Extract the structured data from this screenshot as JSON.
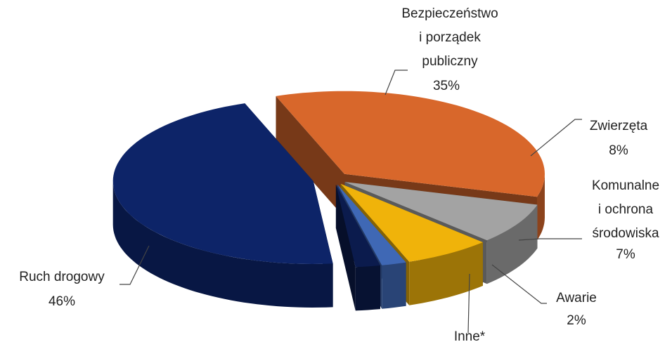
{
  "chart_data": {
    "type": "pie3d",
    "categories": [
      "Bezpieczeństwo\ni porządek\npubliczny",
      "Zwierzęta",
      "Komunalne\ni ochrona\nśrodowiska",
      "Awarie",
      "Inne*",
      "Ruch drogowy"
    ],
    "values": [
      35,
      8,
      7,
      2,
      2,
      46
    ],
    "value_labels": [
      "35%",
      "8%",
      "7%",
      "2%",
      null,
      "46%"
    ],
    "colors": [
      "#d8672b",
      "#a3a3a3",
      "#f0b30a",
      "#3f68b5",
      "#0b1b4d",
      "#0d2468"
    ]
  }
}
